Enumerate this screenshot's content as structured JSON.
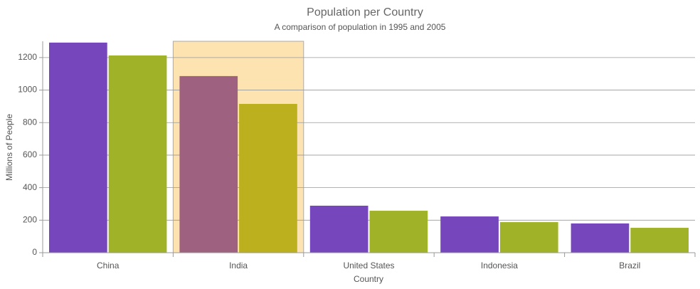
{
  "chart_data": {
    "type": "bar",
    "title": "Population per Country",
    "subtitle": "A comparison of population in 1995 and 2005",
    "x_label": "Country",
    "y_label": "Millions of People",
    "categories": [
      "China",
      "India",
      "United States",
      "Indonesia",
      "Brazil"
    ],
    "series": [
      {
        "color": "#7646bd",
        "values": [
          1292,
          1086,
          289,
          223,
          180
        ]
      },
      {
        "color": "#a0b228",
        "values": [
          1213,
          915,
          258,
          188,
          153
        ]
      }
    ],
    "ylim": [
      0,
      1300
    ],
    "yticks": [
      0,
      200,
      400,
      600,
      800,
      1000,
      1200
    ],
    "grid": true
  }
}
